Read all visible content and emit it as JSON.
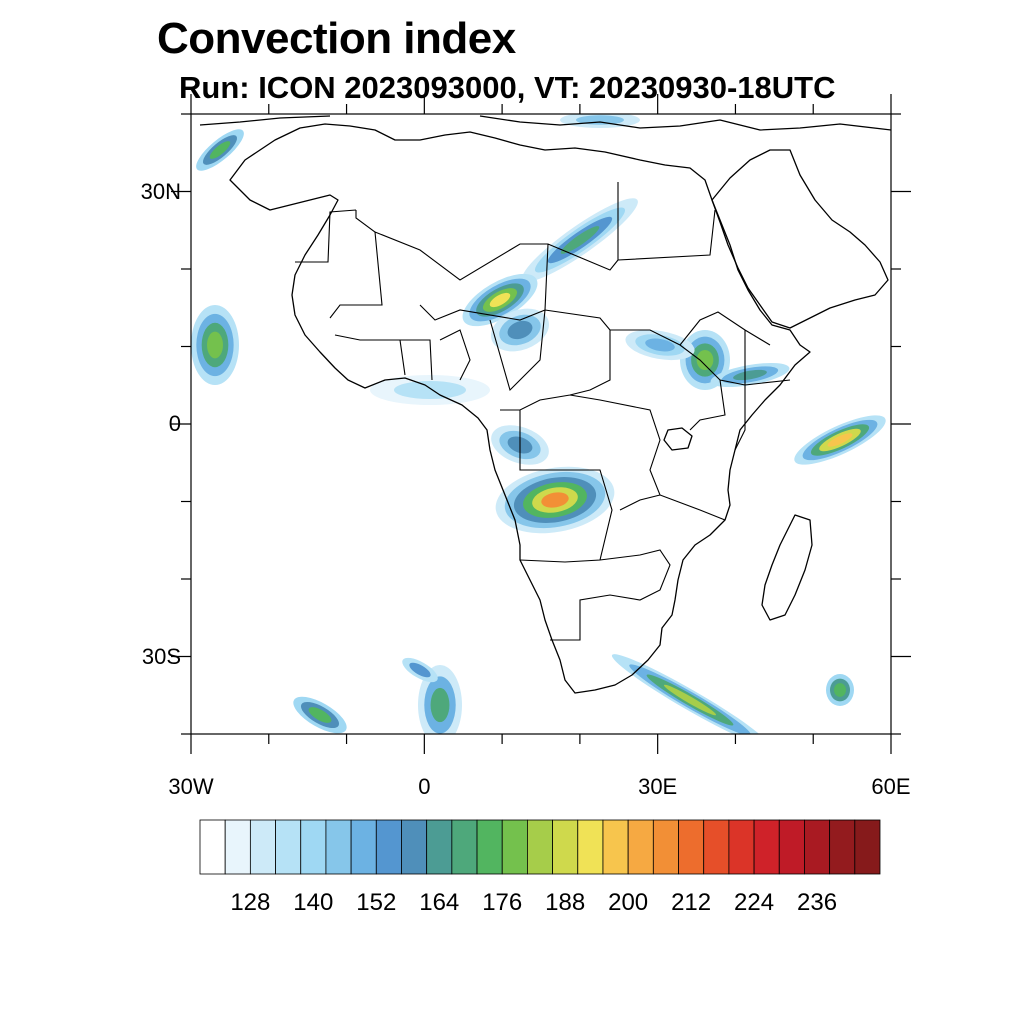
{
  "title": "Convection index",
  "subtitle": "Run: ICON 2023093000,  VT: 20230930-18UTC",
  "map": {
    "lon_range": [
      -30,
      60
    ],
    "lat_range": [
      -40,
      40
    ],
    "lat_labels": [
      {
        "lat": 30,
        "text": "30N"
      },
      {
        "lat": 0,
        "text": "0"
      },
      {
        "lat": -30,
        "text": "30S"
      }
    ],
    "lon_labels": [
      {
        "lon": -30,
        "text": "30W"
      },
      {
        "lon": 0,
        "text": "0"
      },
      {
        "lon": 30,
        "text": "30E"
      },
      {
        "lon": 60,
        "text": "60E"
      }
    ],
    "land_color": "#ffffff",
    "coast_color": "#000000"
  },
  "colorbar": {
    "labels": [
      "128",
      "140",
      "152",
      "164",
      "176",
      "188",
      "200",
      "212",
      "224",
      "236"
    ],
    "colors": [
      "#ffffff",
      "#e8f5fc",
      "#cdeaf8",
      "#b6e2f6",
      "#9fd8f3",
      "#86c6ea",
      "#6cb2e3",
      "#5496d0",
      "#4f8fba",
      "#4c9c94",
      "#4ea87b",
      "#52b560",
      "#74c14d",
      "#a6cd4a",
      "#cfd94c",
      "#f0e256",
      "#f7c54d",
      "#f6a942",
      "#f28f36",
      "#ed6d2d",
      "#e64f29",
      "#db3428",
      "#cf2229",
      "#bf1b27",
      "#a91a22",
      "#931b1e",
      "#861a1b"
    ]
  }
}
